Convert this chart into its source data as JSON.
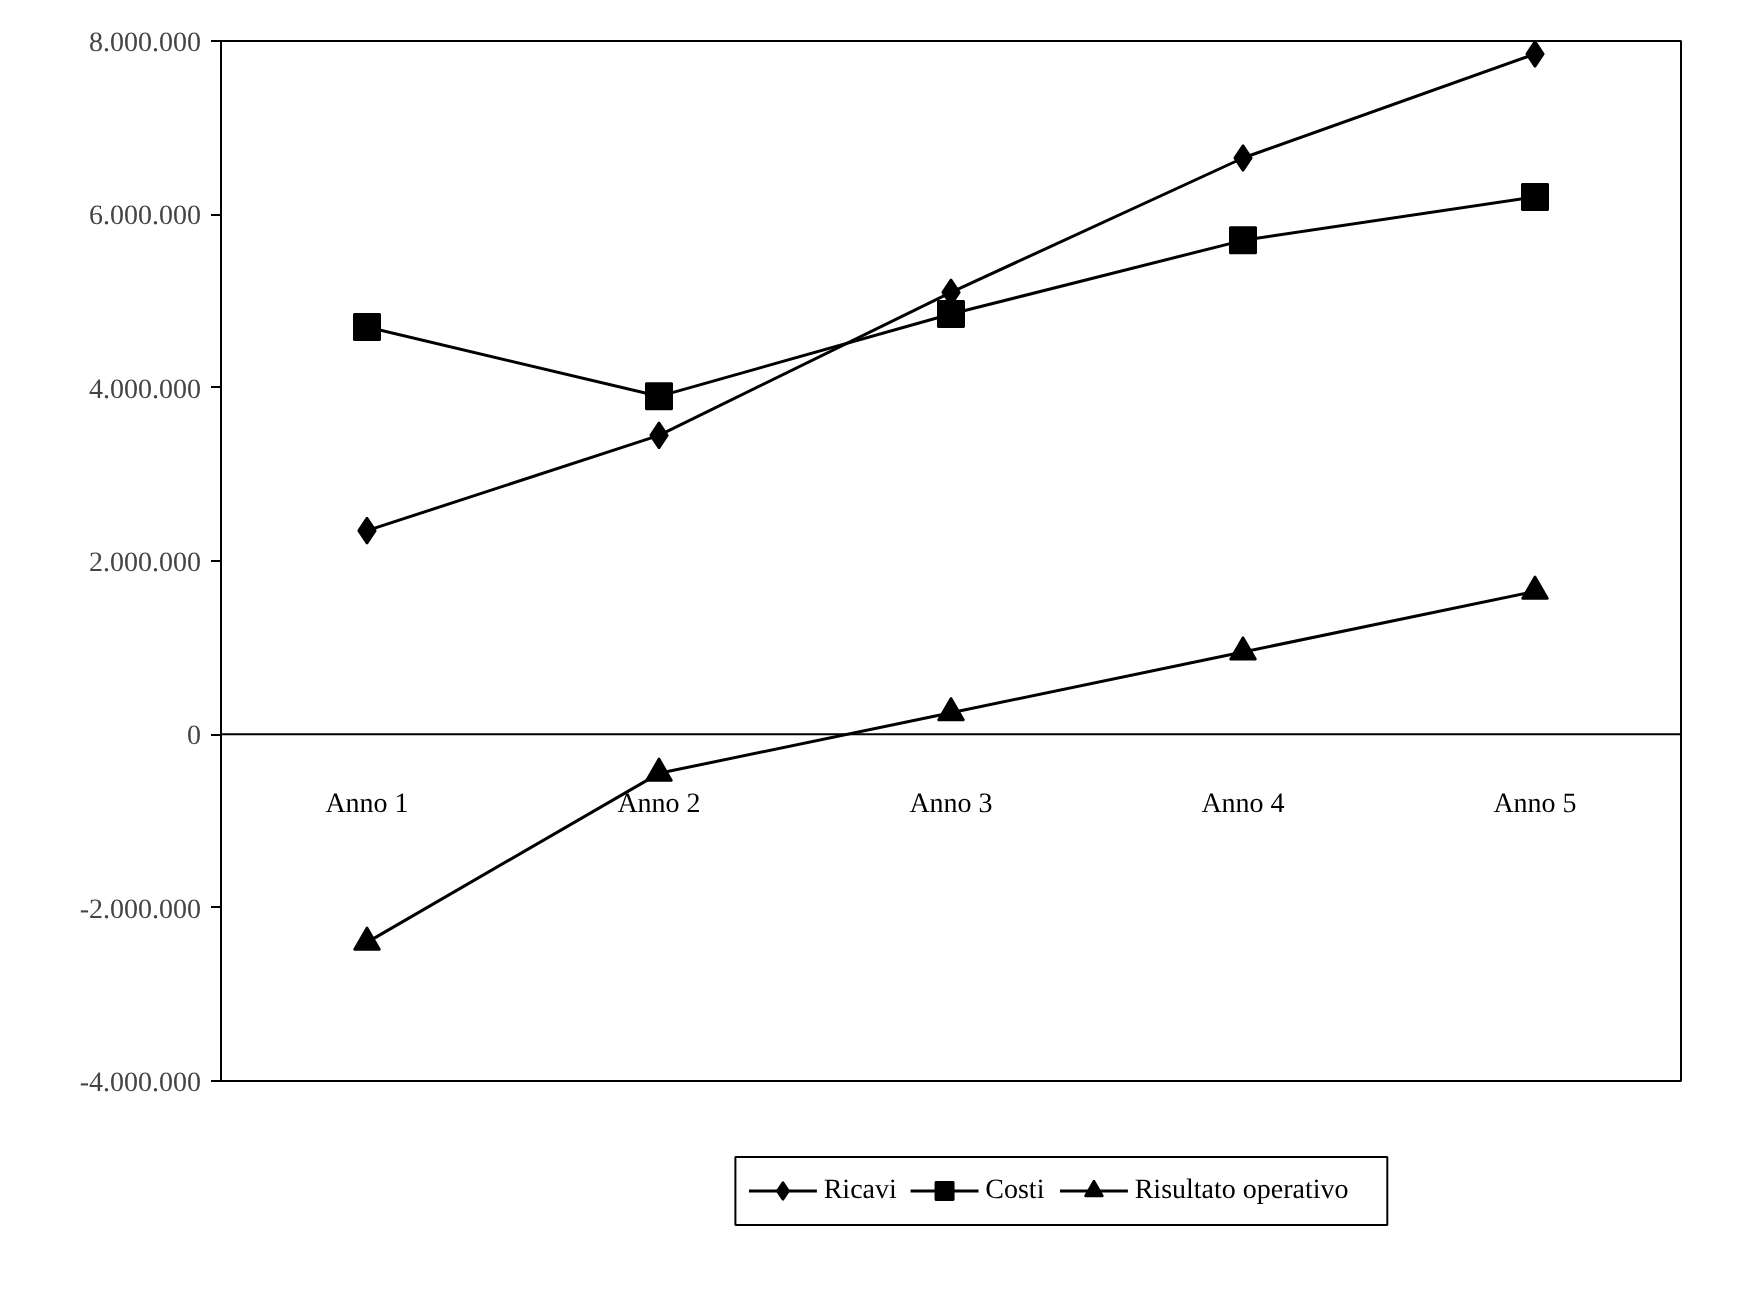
{
  "chart_data": {
    "type": "line",
    "categories": [
      "Anno 1",
      "Anno 2",
      "Anno 3",
      "Anno 4",
      "Anno 5"
    ],
    "series": [
      {
        "name": "Ricavi",
        "color": "#000000",
        "marker": "diamond",
        "values": [
          2350000,
          3450000,
          5100000,
          6650000,
          7850000
        ]
      },
      {
        "name": "Costi",
        "color": "#000000",
        "marker": "square",
        "values": [
          4700000,
          3900000,
          4850000,
          5700000,
          6200000
        ]
      },
      {
        "name": "Risultato operativo",
        "color": "#000000",
        "marker": "triangle",
        "values": [
          -2400000,
          -450000,
          250000,
          950000,
          1650000
        ]
      }
    ],
    "ylim": [
      -4000000,
      8000000
    ],
    "yticks": [
      {
        "value": -4000000,
        "label": "-4.000.000"
      },
      {
        "value": -2000000,
        "label": "-2.000.000"
      },
      {
        "value": 0,
        "label": "0"
      },
      {
        "value": 2000000,
        "label": "2.000.000"
      },
      {
        "value": 4000000,
        "label": "4.000.000"
      },
      {
        "value": 6000000,
        "label": "6.000.000"
      },
      {
        "value": 8000000,
        "label": "8.000.000"
      }
    ],
    "grid": false,
    "legend": "bottom",
    "line_style": "solid"
  }
}
